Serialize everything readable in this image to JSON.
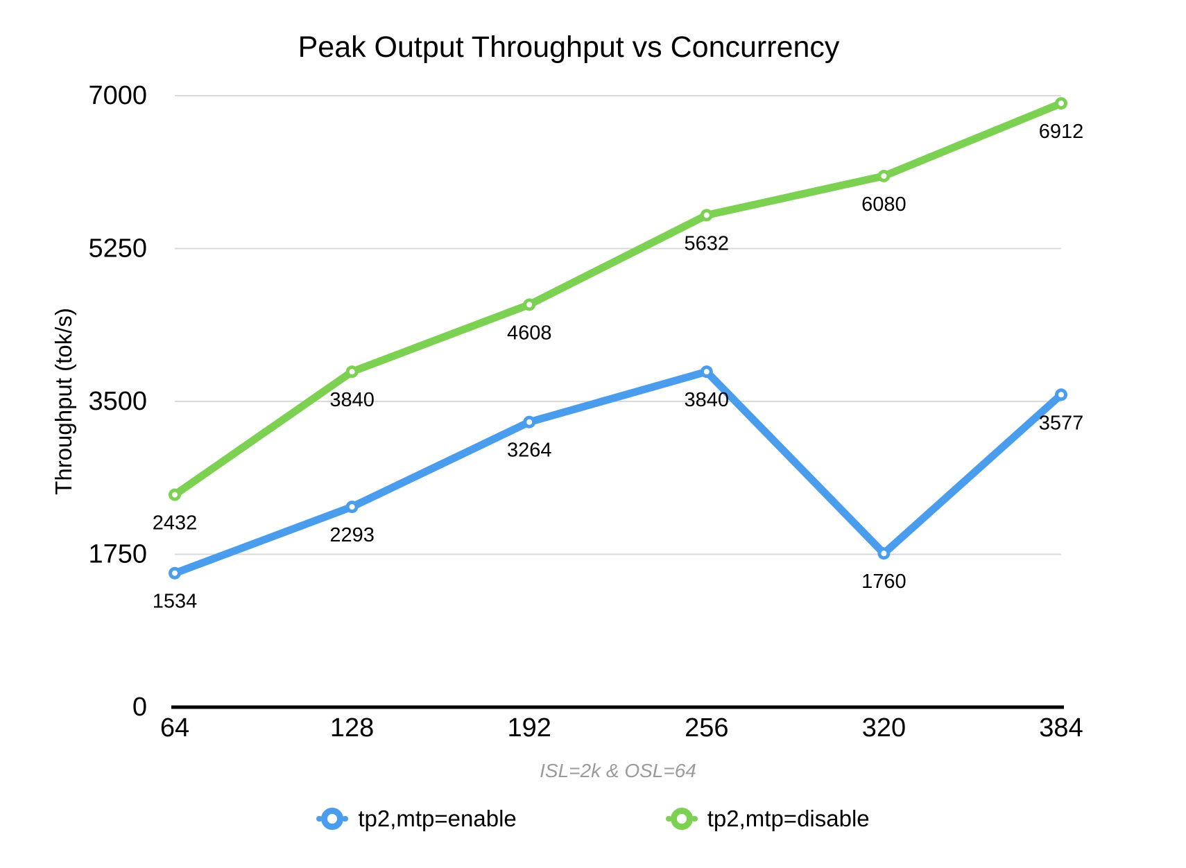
{
  "title": "Peak Output Throughput vs Concurrency",
  "subtitle": "ISL=2k & OSL=64",
  "chart_data": {
    "type": "line",
    "title": "Peak Output Throughput vs Concurrency",
    "xlabel": "ISL=2k & OSL=64",
    "ylabel": "Throughput (tok/s)",
    "categories": [
      64,
      128,
      192,
      256,
      320,
      384
    ],
    "series": [
      {
        "name": "tp2,mtp=enable",
        "color": "#4a9dec",
        "values": [
          1534,
          2293,
          3264,
          3840,
          1760,
          3577
        ]
      },
      {
        "name": "tp2,mtp=disable",
        "color": "#7cd152",
        "values": [
          2432,
          3840,
          4608,
          5632,
          6080,
          6912
        ]
      }
    ],
    "y_ticks": [
      0,
      1750,
      3500,
      5250,
      7000
    ],
    "ylim": [
      0,
      7000
    ],
    "grid": true,
    "data_labels": true,
    "legend_position": "bottom"
  },
  "legend": {
    "items": [
      {
        "label": "tp2,mtp=enable",
        "color": "#4a9dec"
      },
      {
        "label": "tp2,mtp=disable",
        "color": "#7cd152"
      }
    ]
  },
  "colors": {
    "background": "#ffffff",
    "grid": "#d9d9d9",
    "axis": "#000000",
    "text": "#000000",
    "subtitle_text": "#9b9b9b"
  }
}
